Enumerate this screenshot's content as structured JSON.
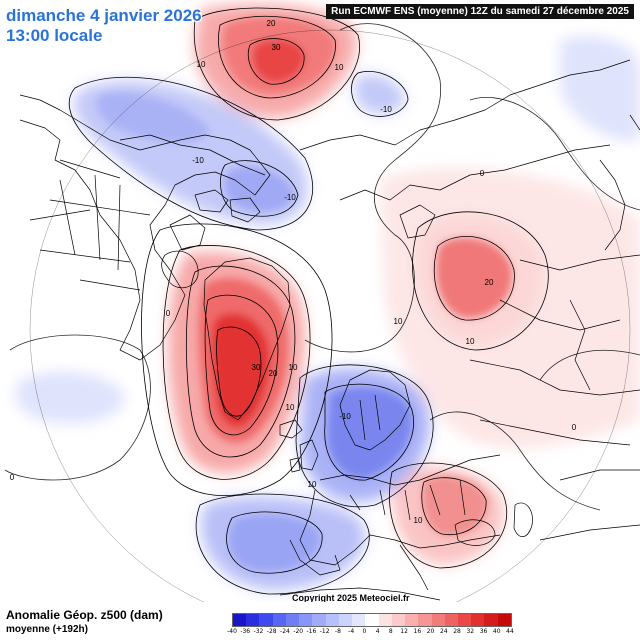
{
  "header": {
    "date": "dimanche 4 janvier 2026",
    "time": "13:00 locale",
    "run": "Run ECMWF ENS (moyenne) 12Z du samedi 27 décembre 2025"
  },
  "footer": {
    "title": "Anomalie Géop. z500 (dam)",
    "subtitle": "moyenne   (+192h)",
    "copyright": "Copyright 2025 Meteociel.fr"
  },
  "legend": {
    "values": [
      "-40",
      "-36",
      "-32",
      "-28",
      "-24",
      "-20",
      "-16",
      "-12",
      "-8",
      "-4",
      "0",
      "4",
      "8",
      "12",
      "16",
      "20",
      "24",
      "28",
      "32",
      "36",
      "40",
      "44"
    ],
    "colors": [
      "#1a16c8",
      "#2a2ee0",
      "#3c4af0",
      "#5866f4",
      "#707ef6",
      "#8896f8",
      "#a0acfa",
      "#b6c0fc",
      "#ccd4fd",
      "#e2e6fe",
      "#ffffff",
      "#fde2e2",
      "#fbcaca",
      "#f8b0b0",
      "#f59696",
      "#f27c7c",
      "#ee6262",
      "#ea4848",
      "#e23030",
      "#d41c1c",
      "#c40a0a"
    ]
  },
  "contour_labels": [
    "20",
    "30",
    "10",
    "10",
    "-10",
    "-10",
    "-10",
    "0",
    "20",
    "10",
    "10",
    "0",
    "30",
    "20",
    "10",
    "10",
    "10",
    "10",
    "-10",
    "0",
    "0"
  ],
  "colors": {
    "header_text": "#2a74d8",
    "positive_anomaly": "#e84a4a",
    "negative_anomaly": "#5e6ee8",
    "coastline": "#000000"
  }
}
